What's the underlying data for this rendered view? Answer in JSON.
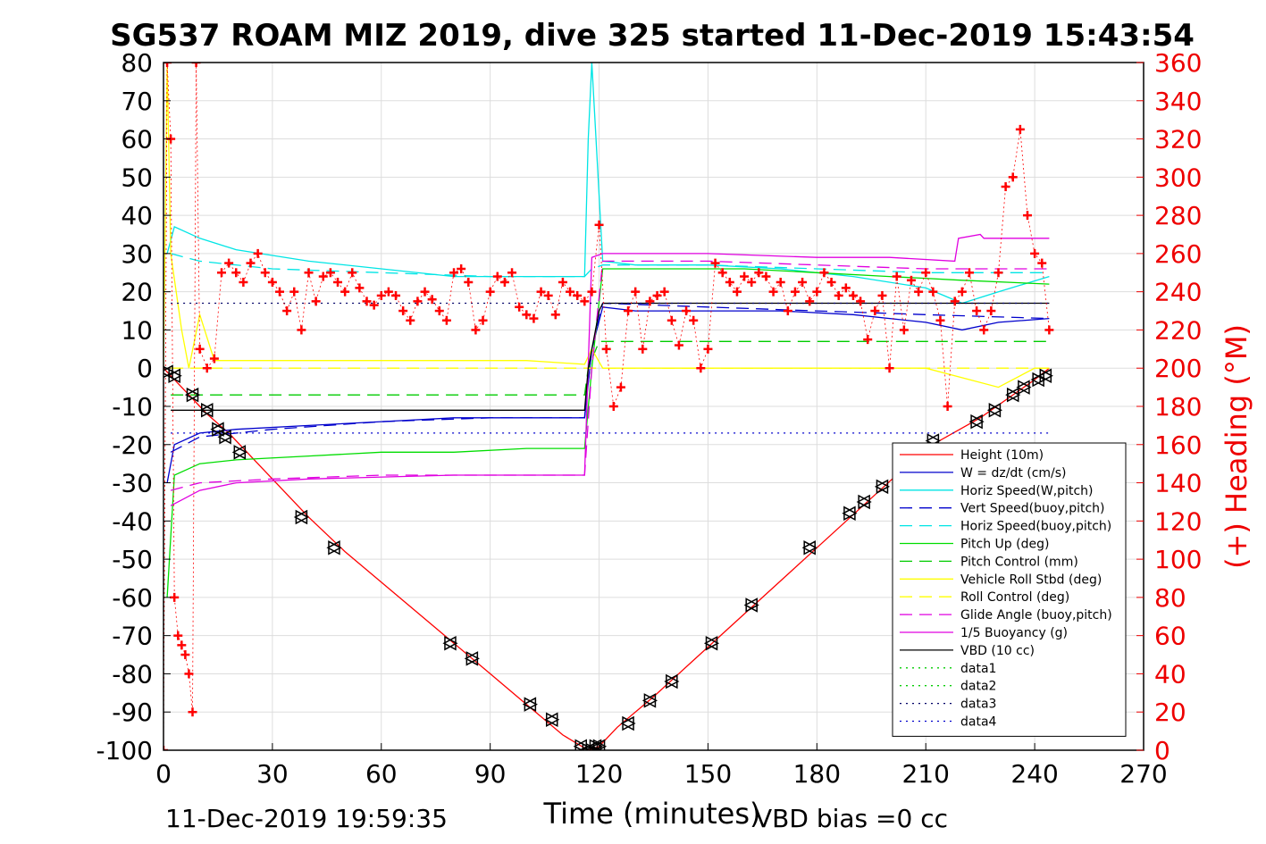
{
  "chart_data": {
    "type": "line",
    "title": "SG537 ROAM MIZ 2019, dive 325 started 11-Dec-2019 15:43:54",
    "xlabel": "Time (minutes)",
    "ylabel_right": "(+) Heading (°M)",
    "xlim": [
      0,
      270
    ],
    "ylim_left": [
      -100,
      80
    ],
    "ylim_right": [
      0,
      360
    ],
    "x_ticks": [
      "0",
      "30",
      "60",
      "90",
      "120",
      "150",
      "180",
      "210",
      "240",
      "270"
    ],
    "y_ticks_left": [
      "80",
      "70",
      "60",
      "50",
      "40",
      "30",
      "20",
      "10",
      "0",
      "-10",
      "-20",
      "-30",
      "-40",
      "-50",
      "-60",
      "-70",
      "-80",
      "-90",
      "-100"
    ],
    "y_ticks_right": [
      "360",
      "340",
      "320",
      "300",
      "280",
      "260",
      "240",
      "220",
      "200",
      "180",
      "160",
      "140",
      "120",
      "100",
      "80",
      "60",
      "40",
      "20",
      "0"
    ],
    "grid": true,
    "legend_position": "lower-right",
    "footer_left": "11-Dec-2019 19:59:35",
    "footer_right": "VBD bias =0 cc",
    "series": [
      {
        "name": "Height (10m)",
        "color": "#ff0000",
        "style": "solid",
        "x": [
          0,
          5,
          12,
          18,
          25,
          40,
          50,
          80,
          90,
          100,
          110,
          117,
          120,
          125,
          135,
          150,
          165,
          180,
          195,
          210,
          225,
          240,
          244
        ],
        "y": [
          0,
          -5,
          -12,
          -17,
          -24,
          -39,
          -48,
          -72,
          -80,
          -88,
          -96,
          -100,
          -99,
          -94,
          -86,
          -73,
          -60,
          -47,
          -34,
          -21,
          -13,
          -3,
          0
        ]
      },
      {
        "name": "W = dz/dt (cm/s)",
        "color": "#0000cc",
        "style": "solid",
        "x": [
          1,
          3,
          10,
          20,
          40,
          60,
          80,
          100,
          116,
          118,
          121,
          130,
          150,
          170,
          190,
          210,
          220,
          230,
          244
        ],
        "y": [
          -30,
          -20,
          -17,
          -16,
          -15,
          -14,
          -13,
          -13,
          -13,
          5,
          16,
          15,
          15,
          15,
          14,
          12,
          10,
          12,
          13
        ]
      },
      {
        "name": "Horiz Speed(W,pitch)",
        "color": "#00e5e5",
        "style": "solid",
        "x": [
          1,
          3,
          10,
          20,
          40,
          60,
          80,
          100,
          116,
          117,
          118,
          121,
          130,
          150,
          170,
          190,
          210,
          220,
          230,
          244
        ],
        "y": [
          30,
          37,
          34,
          31,
          28,
          26,
          24,
          24,
          24,
          60,
          80,
          28,
          27,
          27,
          26,
          24,
          21,
          17,
          20,
          24
        ]
      },
      {
        "name": "Vert Speed(buoy,pitch)",
        "color": "#0000cc",
        "style": "dashed",
        "x": [
          2,
          10,
          30,
          60,
          90,
          116,
          118,
          121,
          150,
          180,
          210,
          244
        ],
        "y": [
          -22,
          -18,
          -16,
          -14,
          -13,
          -13,
          5,
          17,
          16,
          15,
          14,
          13
        ]
      },
      {
        "name": "Horiz Speed(buoy,pitch)",
        "color": "#00e5e5",
        "style": "dashed",
        "x": [
          2,
          10,
          30,
          60,
          90,
          116,
          118,
          121,
          150,
          180,
          210,
          244
        ],
        "y": [
          30,
          28,
          26,
          25,
          24,
          24,
          26,
          27,
          27,
          26,
          25,
          25
        ]
      },
      {
        "name": "Pitch Up (deg)",
        "color": "#00dd00",
        "style": "solid",
        "x": [
          1,
          3,
          10,
          20,
          40,
          60,
          80,
          100,
          116,
          118,
          121,
          140,
          160,
          180,
          200,
          220,
          244
        ],
        "y": [
          -60,
          -28,
          -25,
          -24,
          -23,
          -22,
          -22,
          -21,
          -21,
          0,
          26,
          26,
          26,
          25,
          24,
          23,
          22
        ]
      },
      {
        "name": "Pitch Control (mm)",
        "color": "#00cc00",
        "style": "dashed",
        "x": [
          2,
          116,
          117,
          120,
          244
        ],
        "y": [
          -7,
          -7,
          0,
          7,
          7
        ]
      },
      {
        "name": "Vehicle Roll Stbd (deg)",
        "color": "#ffff00",
        "style": "solid",
        "x": [
          0,
          1,
          2,
          5,
          7,
          10,
          14,
          40,
          80,
          100,
          116,
          118,
          121,
          125,
          150,
          180,
          210,
          230,
          240,
          244
        ],
        "y": [
          0,
          80,
          30,
          10,
          0,
          14,
          2,
          2,
          2,
          2,
          1,
          5,
          0,
          0,
          0,
          0,
          0,
          -5,
          0,
          0
        ]
      },
      {
        "name": "Roll Control (deg)",
        "color": "#ffff00",
        "style": "dashed",
        "x": [
          2,
          116,
          118,
          244
        ],
        "y": [
          0,
          0,
          0,
          0
        ]
      },
      {
        "name": "Glide Angle (buoy,pitch)",
        "color": "#e000e0",
        "style": "dashed",
        "x": [
          2,
          10,
          30,
          60,
          90,
          116,
          118,
          121,
          150,
          180,
          210,
          244
        ],
        "y": [
          -32,
          -30,
          -29,
          -28,
          -28,
          -28,
          0,
          28,
          28,
          27,
          26,
          26
        ]
      },
      {
        "name": "1/5 Buoyancy (g)",
        "color": "#e000e0",
        "style": "solid",
        "x": [
          2,
          4,
          10,
          20,
          40,
          80,
          116,
          118,
          121,
          150,
          180,
          200,
          218,
          219,
          225,
          226,
          244
        ],
        "y": [
          -36,
          -35,
          -32,
          -30,
          -29,
          -28,
          -28,
          29,
          30,
          30,
          29,
          29,
          28,
          34,
          35,
          34,
          34
        ]
      },
      {
        "name": "VBD (10 cc)",
        "color": "#000000",
        "style": "solid",
        "x": [
          2,
          116,
          117,
          120,
          121,
          244
        ],
        "y": [
          -11,
          -11,
          0,
          15,
          17,
          17
        ]
      },
      {
        "name": "data1",
        "color": "#00cc00",
        "style": "dotted",
        "x": [],
        "y": []
      },
      {
        "name": "data2",
        "color": "#00cc00",
        "style": "dotted",
        "x": [],
        "y": []
      },
      {
        "name": "data3",
        "color": "#000066",
        "style": "dotted",
        "x": [
          2,
          244
        ],
        "y": [
          17,
          17
        ]
      },
      {
        "name": "data4",
        "color": "#0000cc",
        "style": "dotted",
        "x": [
          2,
          244
        ],
        "y": [
          -17,
          -17
        ]
      }
    ],
    "heading": {
      "color": "#ff0000",
      "axis": "right",
      "x": [
        0,
        1,
        2,
        3,
        4,
        5,
        6,
        7,
        8,
        9,
        10,
        12,
        14,
        16,
        18,
        20,
        22,
        24,
        26,
        28,
        30,
        32,
        34,
        36,
        38,
        40,
        42,
        44,
        46,
        48,
        50,
        52,
        54,
        56,
        58,
        60,
        62,
        64,
        66,
        68,
        70,
        72,
        74,
        76,
        78,
        80,
        82,
        84,
        86,
        88,
        90,
        92,
        94,
        96,
        98,
        100,
        102,
        104,
        106,
        108,
        110,
        112,
        114,
        116,
        118,
        120,
        122,
        124,
        126,
        128,
        130,
        132,
        134,
        136,
        138,
        140,
        142,
        144,
        146,
        148,
        150,
        152,
        154,
        156,
        158,
        160,
        162,
        164,
        166,
        168,
        170,
        172,
        174,
        176,
        178,
        180,
        182,
        184,
        186,
        188,
        190,
        192,
        194,
        196,
        198,
        200,
        202,
        204,
        206,
        208,
        210,
        212,
        214,
        216,
        218,
        220,
        222,
        224,
        226,
        228,
        230,
        232,
        234,
        236,
        238,
        240,
        242,
        244
      ],
      "y": [
        0,
        360,
        320,
        80,
        60,
        55,
        50,
        40,
        20,
        360,
        210,
        200,
        205,
        250,
        255,
        250,
        245,
        255,
        260,
        250,
        245,
        240,
        230,
        240,
        220,
        250,
        235,
        248,
        250,
        245,
        240,
        250,
        242,
        235,
        233,
        238,
        240,
        238,
        230,
        225,
        235,
        240,
        236,
        230,
        225,
        250,
        252,
        245,
        220,
        225,
        240,
        248,
        245,
        250,
        232,
        228,
        226,
        240,
        238,
        228,
        245,
        240,
        238,
        235,
        240,
        275,
        210,
        180,
        190,
        230,
        240,
        210,
        235,
        238,
        240,
        225,
        212,
        230,
        225,
        200,
        210,
        255,
        250,
        245,
        240,
        248,
        245,
        250,
        248,
        240,
        245,
        230,
        240,
        245,
        235,
        240,
        250,
        245,
        238,
        242,
        238,
        235,
        215,
        230,
        238,
        200,
        248,
        220,
        246,
        240,
        250,
        240,
        225,
        180,
        235,
        240,
        250,
        230,
        220,
        230,
        250,
        295,
        300,
        325,
        280,
        260,
        255,
        220
      ]
    },
    "height_markers": {
      "x": [
        1,
        3,
        8,
        12,
        15,
        17,
        21,
        38,
        47,
        79,
        85,
        101,
        107,
        115,
        117,
        118,
        119,
        120,
        128,
        134,
        140,
        151,
        162,
        178,
        189,
        193,
        198,
        212,
        224,
        229,
        234,
        237,
        241,
        243
      ],
      "y": [
        -1,
        -2,
        -7,
        -11,
        -16,
        -18,
        -22,
        -39,
        -47,
        -72,
        -76,
        -88,
        -92,
        -99,
        -100,
        -100,
        -99,
        -99,
        -93,
        -87,
        -82,
        -72,
        -62,
        -47,
        -38,
        -35,
        -31,
        -19,
        -14,
        -11,
        -7,
        -5,
        -3,
        -2
      ]
    }
  }
}
